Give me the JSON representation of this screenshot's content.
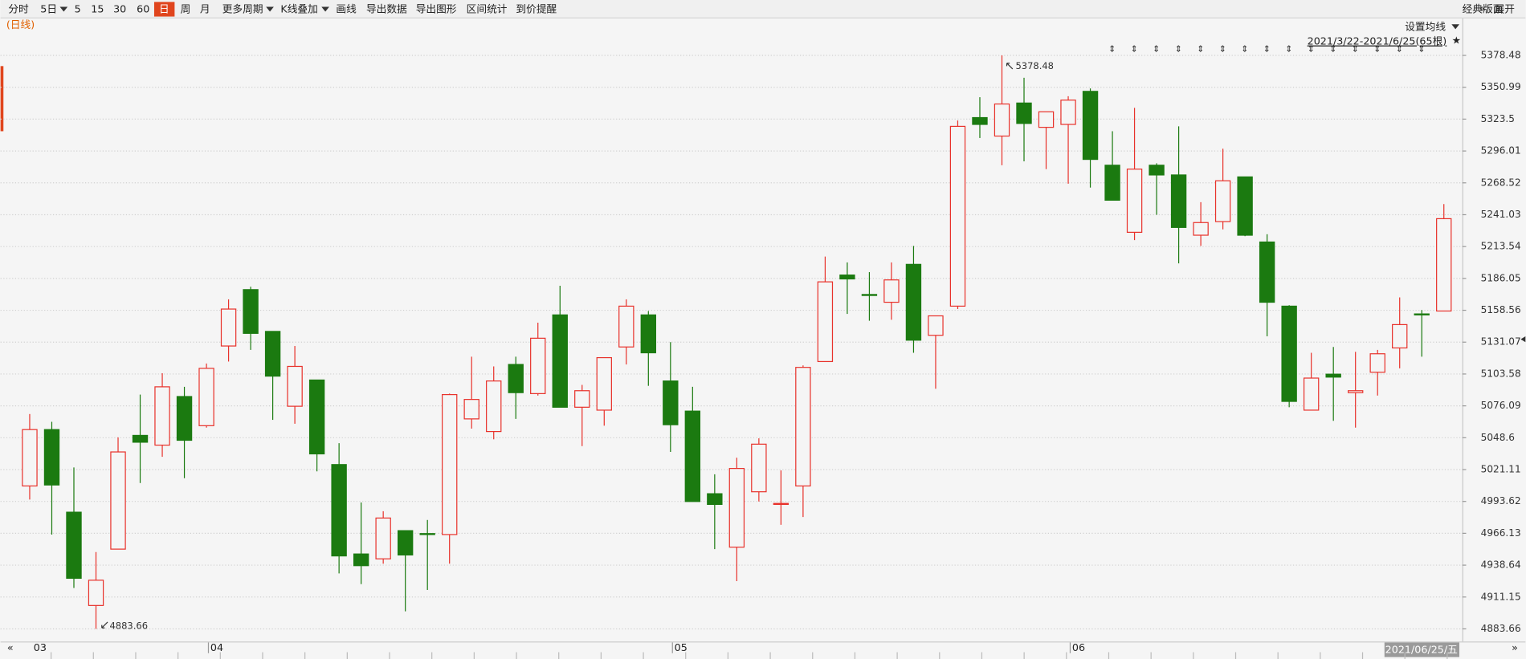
{
  "toolbar": {
    "items": [
      "分时",
      "5日",
      "5",
      "15",
      "30",
      "60",
      "日",
      "周",
      "月",
      "更多周期",
      "K线叠加",
      "画线",
      "导出数据",
      "导出图形",
      "区间统计",
      "到价提醒"
    ],
    "selected": 6,
    "right_items": [
      "经典版面",
      "展开"
    ]
  },
  "chart_data": {
    "type": "candlestick",
    "period_label": "(日线)",
    "ma_settings": "设置均线",
    "range_label": "2021/3/22-2021/6/25(65根)",
    "cursor_date": "2021/06/25/五",
    "categories": [
      "03",
      null,
      null,
      null,
      null,
      null,
      null,
      null,
      "04",
      null,
      null,
      null,
      null,
      null,
      null,
      null,
      null,
      null,
      null,
      null,
      null,
      null,
      null,
      null,
      null,
      null,
      null,
      null,
      null,
      "05",
      null,
      null,
      null,
      null,
      null,
      null,
      null,
      null,
      null,
      null,
      null,
      null,
      null,
      null,
      null,
      null,
      null,
      "06",
      null,
      null,
      null,
      null,
      null,
      null,
      null,
      null,
      null,
      null,
      null,
      null,
      null,
      null,
      null,
      null,
      null
    ],
    "open": [
      5006.98,
      5055.62,
      4984.34,
      4903.83,
      4952.47,
      5050.59,
      5042.2,
      5084.13,
      5058.97,
      5127.74,
      5176.38,
      5140.32,
      5075.75,
      5098.39,
      5025.43,
      4948.28,
      4944.09,
      4968.4,
      4965.89,
      4965.05,
      5064.84,
      5053.94,
      5111.81,
      5086.65,
      5154.57,
      5074.91,
      5072.39,
      5126.9,
      5154.57,
      5097.55,
      5071.55,
      5000.27,
      4954.15,
      5001.95,
      4991.05,
      5006.98,
      5114.32,
      5188.96,
      5172.18,
      5165.48,
      5198.18,
      5136.96,
      5162.12,
      5324.81,
      5308.88,
      5337.39,
      5316.42,
      5318.94,
      5347.45,
      5283.72,
      5225.85,
      5283.72,
      5275.33,
      5223.34,
      5235.08,
      5273.65,
      5217.47,
      5162.12,
      5072.39,
      5103.42,
      5087.49,
      5105.1,
      5126.06,
      5155.41,
      5157.93
    ],
    "high": [
      5069.04,
      5062.33,
      5022.91,
      4949.96,
      5048.91,
      5085.81,
      5104.26,
      5092.52,
      5112.64,
      5167.99,
      5178.89,
      5140.32,
      5127.74,
      5098.39,
      5043.88,
      4992.72,
      4985.18,
      4968.4,
      4977.63,
      5086.65,
      5118.51,
      5110.13,
      5118.51,
      5147.86,
      5179.73,
      5094.19,
      5117.68,
      5167.99,
      5157.93,
      5131.09,
      5092.52,
      5017.04,
      5031.3,
      5048.07,
      5020.4,
      5110.97,
      5204.89,
      5199.86,
      5191.47,
      5199.86,
      5214.11,
      5153.74,
      5322.29,
      5342.42,
      5378.48,
      5359.19,
      5329.84,
      5343.26,
      5349.97,
      5313.07,
      5333.2,
      5285.4,
      5317.26,
      5251.85,
      5297.97,
      5273.65,
      5224.18,
      5162.96,
      5121.87,
      5126.9,
      5122.71,
      5124.38,
      5169.67,
      5158.77,
      5250.17
    ],
    "low": [
      4995.24,
      4965.05,
      4918.93,
      4883.66,
      4952.47,
      5009.5,
      5032.14,
      5013.69,
      5057.3,
      5114.32,
      5124.38,
      5064.0,
      5060.65,
      5019.56,
      4931.51,
      4922.28,
      4939.89,
      4898.8,
      4917.25,
      4939.89,
      5056.46,
      5047.23,
      5064.84,
      5084.97,
      5074.91,
      5041.36,
      5058.97,
      5111.81,
      5093.36,
      5036.33,
      4993.56,
      4952.47,
      4924.8,
      4993.56,
      4973.44,
      4980.14,
      5114.32,
      5155.41,
      5149.54,
      5150.38,
      5121.87,
      5090.84,
      5159.61,
      5307.2,
      5283.72,
      5287.07,
      5280.36,
      5267.78,
      5264.43,
      5253.53,
      5219.15,
      5240.95,
      5199.02,
      5214.11,
      5228.37,
      5222.5,
      5136.12,
      5074.91,
      5072.39,
      5063.17,
      5057.3,
      5084.97,
      5108.45,
      5118.51,
      5157.93
    ],
    "close": [
      5055.62,
      5007.82,
      4927.31,
      4925.64,
      5036.33,
      5044.72,
      5092.52,
      5046.39,
      5108.45,
      5159.61,
      5138.64,
      5101.74,
      5110.13,
      5034.65,
      4946.6,
      4938.21,
      4979.31,
      4947.44,
      4965.05,
      5085.81,
      5081.62,
      5097.55,
      5087.49,
      5134.45,
      5074.91,
      5089.16,
      5117.68,
      5162.12,
      5121.87,
      5059.81,
      4993.56,
      4991.05,
      5022.07,
      5043.04,
      4991.89,
      5109.29,
      5183.09,
      5185.6,
      5171.35,
      5184.76,
      5132.77,
      5153.74,
      5317.26,
      5318.94,
      5336.55,
      5319.78,
      5329.84,
      5339.9,
      5288.75,
      5253.53,
      5280.36,
      5275.33,
      5230.05,
      5234.24,
      5270.3,
      5223.34,
      5165.48,
      5079.94,
      5100.06,
      5100.9,
      5089.16,
      5121.03,
      5146.19,
      5154.57,
      5237.6
    ],
    "up_color": "#e8322b",
    "down_color": "#1b7a10",
    "ylim": [
      4883.66,
      5378.48
    ],
    "yticks": [
      5378.48,
      5350.99,
      5323.5,
      5296.01,
      5268.52,
      5241.03,
      5213.54,
      5186.05,
      5158.56,
      5131.07,
      5103.58,
      5076.09,
      5048.6,
      5021.11,
      4993.62,
      4966.13,
      4938.64,
      4911.15,
      4883.66
    ],
    "grid": true
  }
}
